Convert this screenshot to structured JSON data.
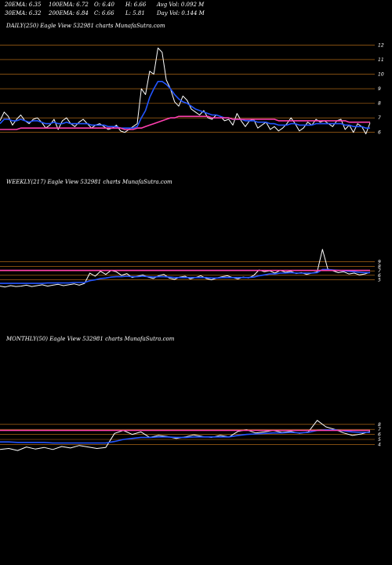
{
  "header": {
    "row1": [
      "20EMA: 6.35",
      "100EMA: 6.72",
      "O: 6.40",
      "H: 6.66",
      "Avg Vol: 0.092  M"
    ],
    "row2": [
      "30EMA: 6.32",
      "200EMA: 6.84",
      "C: 6.66",
      "L: 5.81",
      "Day Vol: 0.144  M"
    ]
  },
  "panels": {
    "daily_title": "DAILY(250) Eagle   View  532981 charts MunafaSutra.com",
    "weekly_title": "WEEKLY(217) Eagle   View  532981 charts MunafaSutra.com",
    "monthly_title": "MONTHLY(50) Eagle   View  532981 charts MunafaSutra.com"
  },
  "colors": {
    "background": "#000000",
    "price": "#ffffff",
    "ema_blue": "#2255ff",
    "ema_magenta": "#ff3fb0",
    "ema_grey": "#bbbbbb",
    "grid": "#cc7a1a"
  },
  "chart_data": [
    {
      "type": "line",
      "name": "daily",
      "yticks": [
        6,
        7,
        8,
        9,
        10,
        11,
        12
      ],
      "ylim": [
        5.5,
        12.4
      ],
      "series": [
        {
          "role": "price",
          "values": [
            6.8,
            7.4,
            7.1,
            6.5,
            6.9,
            7.2,
            6.8,
            6.6,
            6.9,
            7.0,
            6.7,
            6.3,
            6.5,
            6.9,
            6.2,
            6.8,
            7.0,
            6.6,
            6.4,
            6.7,
            6.9,
            6.6,
            6.3,
            6.5,
            6.6,
            6.4,
            6.2,
            6.3,
            6.5,
            6.1,
            6.0,
            6.2,
            6.4,
            6.6,
            9.0,
            8.6,
            10.2,
            10.0,
            11.8,
            11.5,
            9.6,
            9.0,
            8.1,
            7.8,
            8.5,
            8.2,
            7.6,
            7.4,
            7.2,
            7.5,
            7.0,
            6.9,
            7.2,
            7.1,
            6.8,
            6.9,
            6.5,
            7.3,
            6.8,
            6.4,
            6.8,
            6.9,
            6.3,
            6.5,
            6.7,
            6.2,
            6.4,
            6.1,
            6.3,
            6.6,
            7.0,
            6.6,
            6.1,
            6.3,
            6.7,
            6.5,
            6.9,
            6.7,
            6.8,
            6.6,
            6.4,
            6.8,
            6.9,
            6.2,
            6.5,
            6.0,
            6.6,
            6.4,
            5.9,
            6.66
          ]
        },
        {
          "role": "ema_fast",
          "values": [
            6.6,
            6.9,
            6.9,
            6.8,
            6.8,
            6.9,
            6.8,
            6.7,
            6.8,
            6.8,
            6.7,
            6.6,
            6.6,
            6.7,
            6.6,
            6.6,
            6.7,
            6.6,
            6.6,
            6.6,
            6.6,
            6.6,
            6.5,
            6.5,
            6.5,
            6.5,
            6.4,
            6.4,
            6.4,
            6.3,
            6.3,
            6.3,
            6.3,
            6.4,
            7.0,
            7.5,
            8.4,
            9.0,
            9.5,
            9.5,
            9.3,
            9.0,
            8.6,
            8.3,
            8.1,
            8.0,
            7.8,
            7.6,
            7.5,
            7.4,
            7.3,
            7.2,
            7.2,
            7.1,
            7.0,
            7.0,
            6.9,
            6.9,
            6.9,
            6.8,
            6.8,
            6.8,
            6.7,
            6.7,
            6.7,
            6.6,
            6.6,
            6.5,
            6.5,
            6.5,
            6.6,
            6.6,
            6.5,
            6.5,
            6.5,
            6.5,
            6.6,
            6.6,
            6.6,
            6.6,
            6.6,
            6.6,
            6.6,
            6.5,
            6.5,
            6.4,
            6.4,
            6.4,
            6.3,
            6.3
          ]
        },
        {
          "role": "ema_slow",
          "values": [
            6.2,
            6.2,
            6.2,
            6.2,
            6.2,
            6.3,
            6.3,
            6.3,
            6.3,
            6.3,
            6.3,
            6.3,
            6.3,
            6.3,
            6.3,
            6.3,
            6.3,
            6.3,
            6.3,
            6.3,
            6.3,
            6.3,
            6.3,
            6.3,
            6.3,
            6.3,
            6.3,
            6.3,
            6.3,
            6.3,
            6.2,
            6.2,
            6.2,
            6.3,
            6.3,
            6.4,
            6.5,
            6.6,
            6.7,
            6.8,
            6.9,
            7.0,
            7.0,
            7.1,
            7.1,
            7.1,
            7.1,
            7.1,
            7.1,
            7.1,
            7.1,
            7.0,
            7.0,
            7.0,
            7.0,
            7.0,
            6.9,
            6.9,
            6.9,
            6.9,
            6.9,
            6.9,
            6.9,
            6.9,
            6.9,
            6.9,
            6.9,
            6.8,
            6.8,
            6.8,
            6.8,
            6.8,
            6.8,
            6.8,
            6.8,
            6.8,
            6.8,
            6.8,
            6.8,
            6.8,
            6.8,
            6.8,
            6.8,
            6.8,
            6.7,
            6.7,
            6.7,
            6.7,
            6.7,
            6.7
          ]
        }
      ]
    },
    {
      "type": "line",
      "name": "weekly",
      "yticks": [
        5,
        6,
        7,
        8,
        9
      ],
      "ylim": [
        3.0,
        10.0
      ],
      "series": [
        {
          "role": "price",
          "values": [
            3.6,
            3.4,
            3.7,
            3.5,
            3.6,
            3.8,
            3.5,
            3.7,
            3.9,
            3.6,
            3.8,
            4.0,
            3.7,
            3.9,
            4.1,
            3.8,
            4.2,
            6.5,
            5.8,
            6.9,
            6.2,
            7.1,
            6.8,
            6.0,
            6.4,
            5.5,
            5.8,
            6.1,
            5.6,
            5.3,
            5.9,
            6.2,
            5.4,
            5.1,
            5.6,
            5.8,
            5.2,
            5.5,
            5.9,
            5.3,
            5.0,
            5.4,
            5.7,
            5.9,
            5.5,
            5.2,
            5.6,
            5.4,
            6.0,
            7.2,
            6.8,
            7.0,
            6.5,
            7.1,
            6.7,
            6.9,
            6.4,
            6.6,
            6.2,
            6.5,
            6.8,
            11.8,
            7.4,
            7.0,
            6.6,
            6.8,
            6.3,
            6.5,
            6.1,
            6.3,
            6.7
          ]
        },
        {
          "role": "ema_fast",
          "values": [
            4.2,
            4.2,
            4.2,
            4.2,
            4.2,
            4.2,
            4.2,
            4.2,
            4.2,
            4.3,
            4.3,
            4.3,
            4.3,
            4.3,
            4.4,
            4.4,
            4.4,
            4.8,
            5.0,
            5.3,
            5.4,
            5.6,
            5.7,
            5.7,
            5.8,
            5.7,
            5.7,
            5.8,
            5.7,
            5.6,
            5.7,
            5.7,
            5.6,
            5.5,
            5.5,
            5.5,
            5.5,
            5.5,
            5.5,
            5.5,
            5.4,
            5.4,
            5.5,
            5.5,
            5.5,
            5.5,
            5.5,
            5.5,
            5.6,
            5.9,
            6.1,
            6.3,
            6.3,
            6.5,
            6.5,
            6.6,
            6.5,
            6.5,
            6.5,
            6.5,
            6.6,
            7.3,
            7.3,
            7.2,
            7.1,
            7.0,
            6.9,
            6.8,
            6.7,
            6.6,
            6.6
          ]
        },
        {
          "role": "ema_slow",
          "values": [
            7.1,
            7.1,
            7.1,
            7.1,
            7.1,
            7.1,
            7.1,
            7.1,
            7.1,
            7.1,
            7.1,
            7.1,
            7.1,
            7.1,
            7.1,
            7.1,
            7.1,
            7.1,
            7.1,
            7.1,
            7.1,
            7.1,
            7.1,
            7.1,
            7.1,
            7.1,
            7.1,
            7.1,
            7.1,
            7.1,
            7.1,
            7.1,
            7.1,
            7.1,
            7.1,
            7.1,
            7.1,
            7.1,
            7.1,
            7.1,
            7.1,
            7.1,
            7.1,
            7.1,
            7.1,
            7.1,
            7.1,
            7.1,
            7.1,
            7.1,
            7.1,
            7.1,
            7.1,
            7.1,
            7.1,
            7.1,
            7.1,
            7.1,
            7.1,
            7.1,
            7.1,
            7.1,
            7.1,
            7.1,
            7.1,
            7.1,
            7.1,
            7.1,
            7.1,
            7.1,
            7.1
          ]
        }
      ]
    },
    {
      "type": "line",
      "name": "monthly",
      "yticks": [
        4,
        5,
        6,
        7,
        8
      ],
      "ylim": [
        2.5,
        10.0
      ],
      "series": [
        {
          "role": "price",
          "values": [
            3.0,
            3.2,
            2.8,
            3.5,
            3.1,
            3.4,
            3.0,
            3.6,
            3.3,
            3.8,
            3.5,
            3.2,
            3.4,
            6.2,
            6.8,
            6.0,
            6.5,
            5.4,
            5.8,
            5.6,
            5.2,
            5.5,
            5.9,
            5.6,
            5.4,
            5.8,
            5.5,
            6.6,
            6.9,
            6.3,
            6.5,
            6.8,
            6.4,
            6.6,
            6.2,
            6.5,
            8.8,
            7.5,
            7.0,
            6.3,
            5.8,
            6.1,
            6.6
          ]
        },
        {
          "role": "ema_fast",
          "values": [
            4.5,
            4.5,
            4.4,
            4.4,
            4.4,
            4.4,
            4.3,
            4.3,
            4.3,
            4.3,
            4.3,
            4.3,
            4.3,
            4.6,
            5.0,
            5.2,
            5.4,
            5.4,
            5.5,
            5.5,
            5.4,
            5.4,
            5.5,
            5.5,
            5.5,
            5.5,
            5.5,
            5.8,
            6.0,
            6.1,
            6.2,
            6.3,
            6.3,
            6.4,
            6.3,
            6.4,
            6.8,
            6.9,
            6.9,
            6.7,
            6.5,
            6.4,
            6.4
          ]
        },
        {
          "role": "ema_slow",
          "values": [
            6.8,
            6.8,
            6.8,
            6.8,
            6.8,
            6.8,
            6.8,
            6.8,
            6.8,
            6.8,
            6.8,
            6.8,
            6.8,
            6.8,
            6.8,
            6.8,
            6.8,
            6.8,
            6.8,
            6.8,
            6.8,
            6.8,
            6.8,
            6.8,
            6.8,
            6.8,
            6.8,
            6.8,
            6.8,
            6.8,
            6.8,
            6.8,
            6.8,
            6.8,
            6.8,
            6.8,
            6.8,
            6.8,
            6.8,
            6.8,
            6.8,
            6.8,
            6.8
          ]
        }
      ]
    }
  ]
}
